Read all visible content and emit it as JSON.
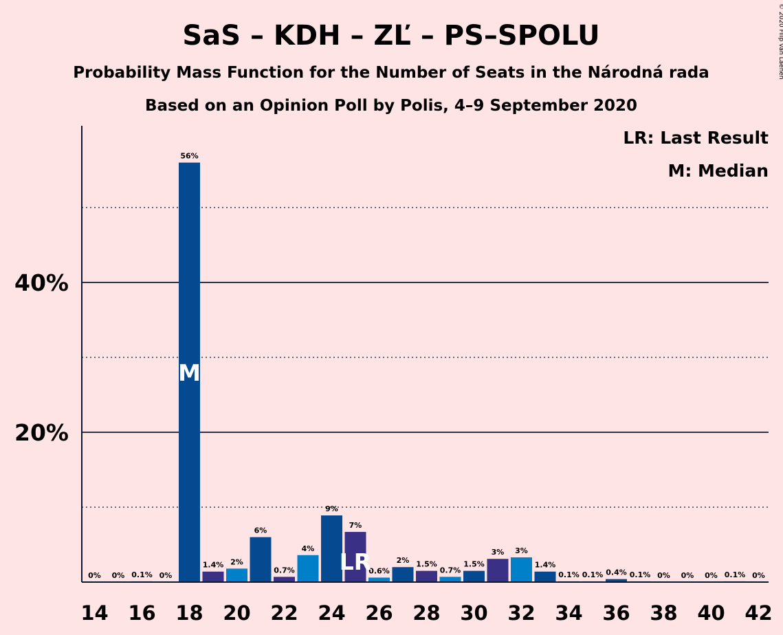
{
  "chart_data": {
    "type": "bar",
    "title": "SaS – KDH – ZĽ – PS–SPOLU",
    "subtitle": "Probability Mass Function for the Number of Seats in the Národná rada",
    "subtitle2": "Based on an Opinion Poll by Polis, 4–9 September 2020",
    "copyright": "© 2020 Filip van Laenen",
    "legend": {
      "lr": "LR: Last Result",
      "median": "M: Median",
      "position": "top-right"
    },
    "x_ticks": [
      "14",
      "16",
      "18",
      "20",
      "22",
      "24",
      "26",
      "28",
      "30",
      "32",
      "34",
      "36",
      "38",
      "40",
      "42"
    ],
    "y_ticks": [
      "20%",
      "40%"
    ],
    "ylim": [
      0,
      60
    ],
    "grid": {
      "solid": [
        20,
        40
      ],
      "dotted": [
        10,
        30,
        50
      ]
    },
    "median_seat": 18,
    "median_marker": "M",
    "last_result_seat": 25,
    "last_result_marker": "LR",
    "colors": [
      "#0080C8",
      "#054A91",
      "#3A3187"
    ],
    "bars": [
      {
        "seat": 14,
        "value": 0,
        "label": "0%"
      },
      {
        "seat": 15,
        "value": 0,
        "label": "0%"
      },
      {
        "seat": 16,
        "value": 0.1,
        "label": "0.1%"
      },
      {
        "seat": 17,
        "value": 0,
        "label": "0%"
      },
      {
        "seat": 18,
        "value": 56,
        "label": "56%"
      },
      {
        "seat": 19,
        "value": 1.4,
        "label": "1.4%"
      },
      {
        "seat": 20,
        "value": 1.8,
        "label": "2%"
      },
      {
        "seat": 21,
        "value": 6,
        "label": "6%"
      },
      {
        "seat": 22,
        "value": 0.7,
        "label": "0.7%"
      },
      {
        "seat": 23,
        "value": 3.6,
        "label": "4%"
      },
      {
        "seat": 24,
        "value": 8.9,
        "label": "9%"
      },
      {
        "seat": 25,
        "value": 6.7,
        "label": "7%"
      },
      {
        "seat": 26,
        "value": 0.6,
        "label": "0.6%"
      },
      {
        "seat": 27,
        "value": 2,
        "label": "2%"
      },
      {
        "seat": 28,
        "value": 1.5,
        "label": "1.5%"
      },
      {
        "seat": 29,
        "value": 0.7,
        "label": "0.7%"
      },
      {
        "seat": 30,
        "value": 1.5,
        "label": "1.5%"
      },
      {
        "seat": 31,
        "value": 3.1,
        "label": "3%"
      },
      {
        "seat": 32,
        "value": 3.3,
        "label": "3%"
      },
      {
        "seat": 33,
        "value": 1.4,
        "label": "1.4%"
      },
      {
        "seat": 34,
        "value": 0.1,
        "label": "0.1%"
      },
      {
        "seat": 35,
        "value": 0.1,
        "label": "0.1%"
      },
      {
        "seat": 36,
        "value": 0.4,
        "label": "0.4%"
      },
      {
        "seat": 37,
        "value": 0.1,
        "label": "0.1%"
      },
      {
        "seat": 38,
        "value": 0,
        "label": "0%"
      },
      {
        "seat": 39,
        "value": 0,
        "label": "0%"
      },
      {
        "seat": 40,
        "value": 0,
        "label": "0%"
      },
      {
        "seat": 41,
        "value": 0.1,
        "label": "0.1%"
      },
      {
        "seat": 42,
        "value": 0,
        "label": "0%"
      }
    ]
  }
}
